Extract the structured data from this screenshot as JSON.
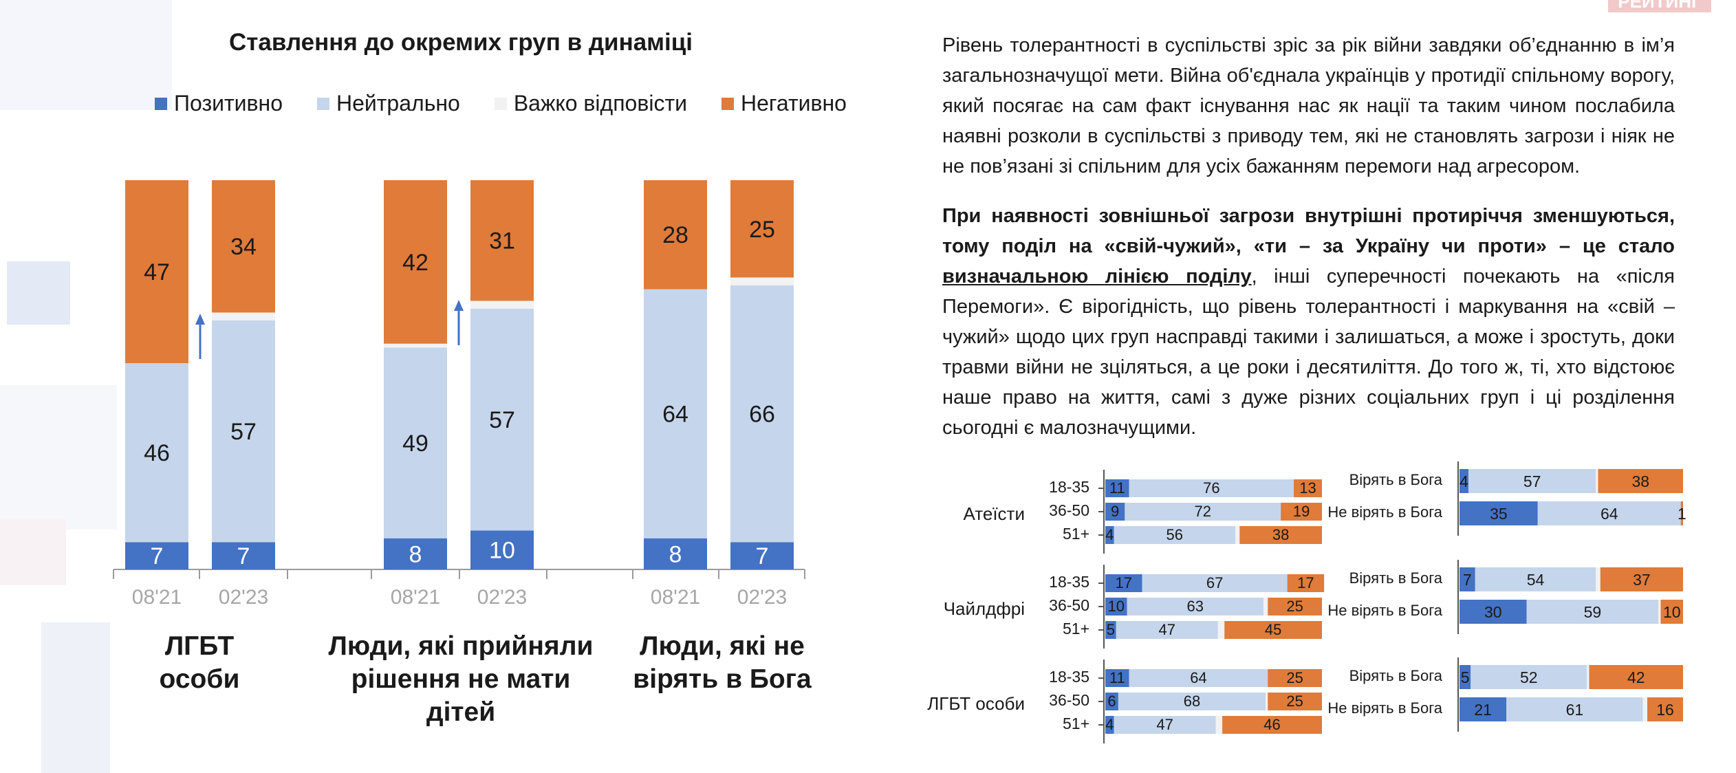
{
  "logo_text": "РЕЙТИНГ",
  "legend": [
    {
      "name": "Позитивно",
      "color": "#4472C4"
    },
    {
      "name": "Нейтрально",
      "color": "#C5D5EB"
    },
    {
      "name": "Важко відповісти",
      "color": "#F2F2F2"
    },
    {
      "name": "Негативно",
      "color": "#E07B39"
    }
  ],
  "chart_data": [
    {
      "type": "bar",
      "stacked": true,
      "title": "Ставлення до окремих груп в динаміці",
      "ylim": [
        0,
        100
      ],
      "groups": [
        {
          "label": "ЛГБТ\nособи",
          "periods": [
            "08'21",
            "02'23"
          ],
          "series": {
            "Позитивно": [
              7,
              7
            ],
            "Нейтрально": [
              46,
              57
            ],
            "Важко відповісти": [
              0,
              2
            ],
            "Негативно": [
              47,
              34
            ]
          }
        },
        {
          "label": "Люди, які прийняли\nрішення не мати дітей",
          "periods": [
            "08'21",
            "02'23"
          ],
          "series": {
            "Позитивно": [
              8,
              10
            ],
            "Нейтрально": [
              49,
              57
            ],
            "Важко відповісти": [
              1,
              2
            ],
            "Негативно": [
              42,
              31
            ]
          }
        },
        {
          "label": "Люди, які не\nвірять в Бога",
          "periods": [
            "08'21",
            "02'23"
          ],
          "series": {
            "Позитивно": [
              8,
              7
            ],
            "Нейтрально": [
              64,
              66
            ],
            "Важко відповісти": [
              0,
              2
            ],
            "Негативно": [
              28,
              25
            ]
          }
        }
      ]
    },
    {
      "type": "bar",
      "orientation": "horizontal",
      "stacked": true,
      "title": "",
      "xlim": [
        0,
        100
      ],
      "series_order": [
        "Позитивно",
        "Нейтрально",
        "Важко відповісти",
        "Негативно"
      ],
      "blocks": [
        {
          "group": "Атеїсти",
          "rows": [
            {
              "label": "18-35",
              "values": [
                11,
                76,
                0,
                13
              ]
            },
            {
              "label": "36-50",
              "values": [
                9,
                72,
                0,
                19
              ]
            },
            {
              "label": "51+",
              "values": [
                4,
                56,
                2,
                38
              ]
            }
          ]
        },
        {
          "group": "Чайлдфрі",
          "rows": [
            {
              "label": "18-35",
              "values": [
                17,
                67,
                0,
                17
              ]
            },
            {
              "label": "36-50",
              "values": [
                10,
                63,
                2,
                25
              ]
            },
            {
              "label": "51+",
              "values": [
                5,
                47,
                3,
                45
              ]
            }
          ]
        },
        {
          "group": "ЛГБТ особи",
          "rows": [
            {
              "label": "18-35",
              "values": [
                11,
                64,
                0,
                25
              ]
            },
            {
              "label": "36-50",
              "values": [
                6,
                68,
                1,
                25
              ]
            },
            {
              "label": "51+",
              "values": [
                4,
                47,
                3,
                46
              ]
            }
          ]
        }
      ],
      "blocks_right": [
        {
          "rows": [
            {
              "label": "Вірять в Бога",
              "values": [
                4,
                57,
                1,
                38
              ]
            },
            {
              "label": "Не вірять в Бога",
              "values": [
                35,
                64,
                0,
                1
              ]
            }
          ]
        },
        {
          "rows": [
            {
              "label": "Вірять в Бога",
              "values": [
                7,
                54,
                2,
                37
              ]
            },
            {
              "label": "Не вірять в Бога",
              "values": [
                30,
                59,
                1,
                10
              ]
            }
          ]
        },
        {
          "rows": [
            {
              "label": "Вірять в Бога",
              "values": [
                5,
                52,
                1,
                42
              ]
            },
            {
              "label": "Не вірять в Бога",
              "values": [
                21,
                61,
                2,
                16
              ]
            }
          ]
        }
      ]
    }
  ],
  "text": {
    "p1": "Рівень толерантності в суспільстві зріс за рік війни завдяки об’єднанню в ім’я загальнозначущої мети. Війна об'єднала українців у протидії спільному ворогу, який посягає на сам факт існування нас як нації та таким чином послабила наявні розколи в суспільстві з приводу тем, які не становлять загрози і ніяк не не пов’язані зі спільним для усіх бажанням перемоги над агресором.",
    "p2_bold": "При наявності зовнішньої загрози внутрішні протиріччя зменшуються, тому поділ на «свій-чужий», «ти – за Україну чи проти» – це стало ",
    "p2_bold_ul": "визначальною лінією поділу",
    "p2_rest": ", інші суперечності почекають на «після Перемоги». Є вірогідність, що рівень толерантності і маркування на «свій – чужий» щодо цих груп насправді такими і залишаться, а може і зростуть, доки травми війни не зціляться, а це роки і десятиліття. До того ж, ті, хто відстоює наше право на життя, самі з дуже різних соціальних груп і ці розділення сьогодні є малозначущими."
  }
}
